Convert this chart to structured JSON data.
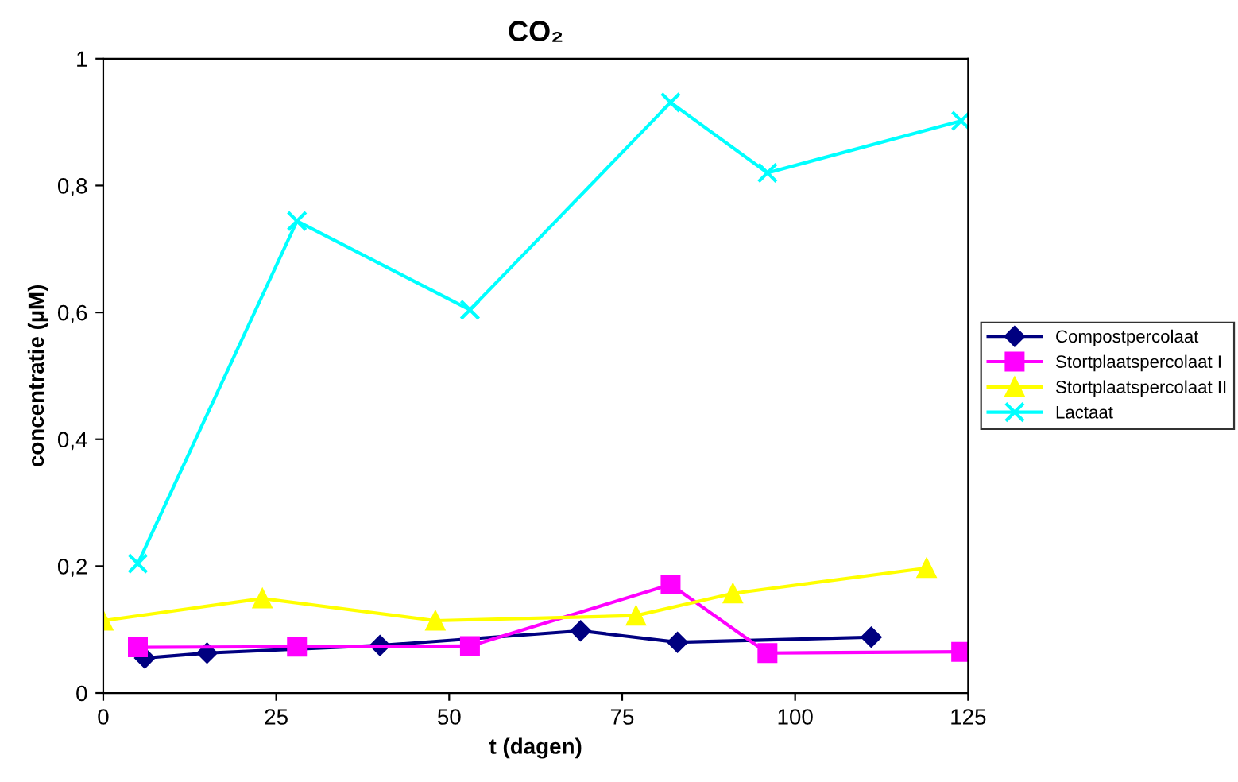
{
  "chart_data": {
    "type": "line",
    "title": "CO₂",
    "xlabel": "t (dagen)",
    "ylabel": "concentratie (µM)",
    "xlim": [
      0,
      125
    ],
    "xticks": [
      0,
      25,
      50,
      75,
      100,
      125
    ],
    "ylim": [
      0,
      1
    ],
    "yticks": [
      0,
      {
        "value": 0.2,
        "label": "0,2"
      },
      {
        "value": 0.4,
        "label": "0,4"
      },
      {
        "value": 0.6,
        "label": "0,6"
      },
      {
        "value": 0.8,
        "label": "0,8"
      },
      1
    ],
    "grid": false,
    "legend": "right",
    "series": [
      {
        "name": "Compostpercolaat",
        "color": "#000080",
        "marker": "diamond",
        "x": [
          6,
          15,
          40,
          69,
          83,
          111
        ],
        "values": [
          0.055,
          0.063,
          0.075,
          0.098,
          0.08,
          0.088
        ]
      },
      {
        "name": "Stortplaatspercolaat I",
        "color": "#ff00ff",
        "marker": "square",
        "x": [
          5,
          28,
          53,
          82,
          96,
          124
        ],
        "values": [
          0.072,
          0.073,
          0.074,
          0.171,
          0.063,
          0.065
        ]
      },
      {
        "name": "Stortplaatspercolaat II",
        "color": "#ffff00",
        "marker": "triangle",
        "x": [
          0,
          23,
          48,
          77,
          91,
          119
        ],
        "values": [
          0.114,
          0.149,
          0.114,
          0.122,
          0.157,
          0.197
        ]
      },
      {
        "name": "Lactaat",
        "color": "#00ffff",
        "marker": "cross",
        "x": [
          5,
          28,
          53,
          82,
          96,
          124
        ],
        "values": [
          0.204,
          0.744,
          0.604,
          0.931,
          0.82,
          0.902
        ]
      }
    ]
  }
}
